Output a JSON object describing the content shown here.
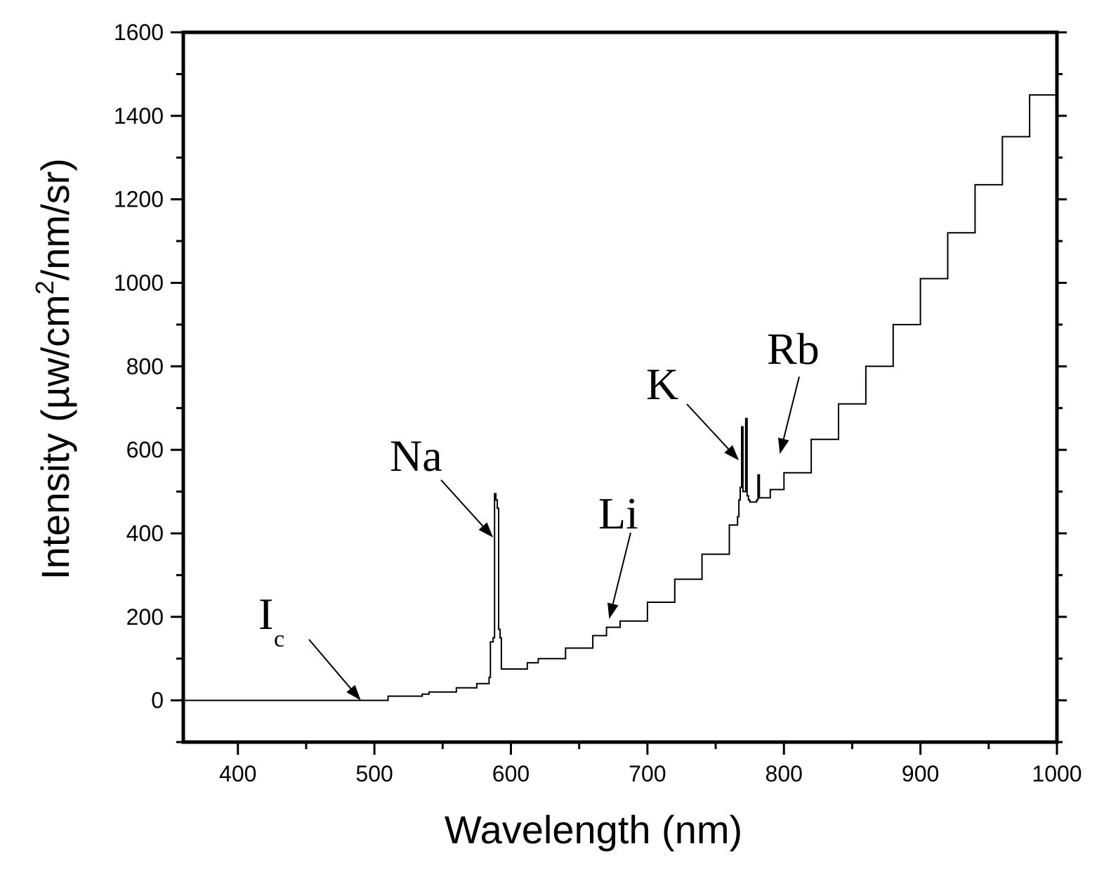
{
  "chart_data": {
    "type": "line",
    "title": "",
    "xlabel": "Wavelength (nm)",
    "ylabel": {
      "main": "Intensity (µw/cm",
      "sup": "2",
      "tail": "/nm/sr)"
    },
    "xlim": [
      360,
      1000
    ],
    "ylim": [
      -100,
      1600
    ],
    "x_ticks": [
      400,
      500,
      600,
      700,
      800,
      900,
      1000
    ],
    "x_tick_labels": [
      "400",
      "500",
      "600",
      "700",
      "800",
      "900",
      "1000"
    ],
    "y_ticks": [
      0,
      200,
      400,
      600,
      800,
      1000,
      1200,
      1400,
      1600
    ],
    "y_tick_labels": [
      "0",
      "200",
      "400",
      "600",
      "800",
      "1000",
      "1200",
      "1400",
      "1600"
    ],
    "grid": false,
    "legend": null,
    "series": [
      {
        "name": "spectrum",
        "x": [
          360,
          400,
          450,
          500,
          508,
          510,
          530,
          535,
          540,
          560,
          575,
          584,
          585,
          587,
          588,
          589,
          590,
          591,
          592,
          593,
          594,
          600,
          612,
          620,
          640,
          660,
          670,
          680,
          700,
          720,
          740,
          760,
          766,
          767,
          768,
          769,
          770,
          771,
          772,
          773,
          774,
          775,
          776,
          780,
          781,
          782,
          790,
          800,
          820,
          840,
          860,
          880,
          900,
          920,
          940,
          960,
          980,
          1000
        ],
        "values": [
          0,
          0,
          0,
          0,
          0,
          10,
          10,
          15,
          20,
          30,
          40,
          55,
          140,
          150,
          495,
          480,
          460,
          170,
          150,
          75,
          75,
          75,
          90,
          100,
          125,
          155,
          175,
          190,
          235,
          290,
          350,
          420,
          440,
          480,
          510,
          655,
          500,
          500,
          675,
          490,
          480,
          475,
          475,
          480,
          540,
          485,
          505,
          545,
          625,
          710,
          800,
          900,
          1010,
          1120,
          1235,
          1350,
          1450,
          1545
        ]
      }
    ],
    "annotations": [
      {
        "text": "I",
        "sub": "c",
        "target": [
          490,
          0
        ]
      },
      {
        "text": "Na",
        "target": [
          587,
          390
        ]
      },
      {
        "text": "Li",
        "target": [
          672,
          195
        ]
      },
      {
        "text": "K",
        "target": [
          767,
          575
        ]
      },
      {
        "text": "Rb",
        "target": [
          797,
          590
        ]
      }
    ]
  }
}
